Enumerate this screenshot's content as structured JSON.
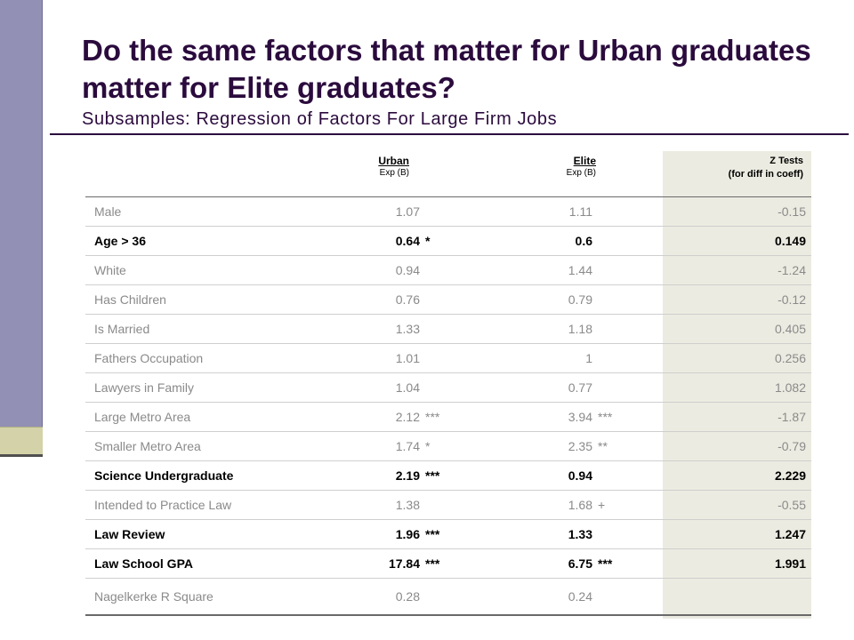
{
  "slide": {
    "title": "Do the same factors that matter for Urban graduates matter for Elite graduates?",
    "subtitle": "Subsamples: Regression of Factors For Large Firm Jobs"
  },
  "table": {
    "headers": {
      "urban": "Urban",
      "urban_sub": "Exp (B)",
      "elite": "Elite",
      "elite_sub": "Exp (B)",
      "z_line1": "Z Tests",
      "z_line2": "(for diff in coeff)"
    },
    "rows": [
      {
        "label": "Male",
        "urban": "1.07",
        "urban_sig": "",
        "elite": "1.11",
        "elite_sig": "",
        "z": "-0.15"
      },
      {
        "label": "Age > 36",
        "urban": "0.64",
        "urban_sig": "*",
        "elite": "0.6",
        "elite_sig": "",
        "z": "0.149"
      },
      {
        "label": "White",
        "urban": "0.94",
        "urban_sig": "",
        "elite": "1.44",
        "elite_sig": "",
        "z": "-1.24"
      },
      {
        "label": "Has Children",
        "urban": "0.76",
        "urban_sig": "",
        "elite": "0.79",
        "elite_sig": "",
        "z": "-0.12"
      },
      {
        "label": "Is Married",
        "urban": "1.33",
        "urban_sig": "",
        "elite": "1.18",
        "elite_sig": "",
        "z": "0.405"
      },
      {
        "label": "Fathers Occupation",
        "urban": "1.01",
        "urban_sig": "",
        "elite": "1",
        "elite_sig": "",
        "z": "0.256"
      },
      {
        "label": "Lawyers in Family",
        "urban": "1.04",
        "urban_sig": "",
        "elite": "0.77",
        "elite_sig": "",
        "z": "1.082"
      },
      {
        "label": "Large Metro Area",
        "urban": "2.12",
        "urban_sig": "***",
        "elite": "3.94",
        "elite_sig": "***",
        "z": "-1.87"
      },
      {
        "label": "Smaller Metro Area",
        "urban": "1.74",
        "urban_sig": "*",
        "elite": "2.35",
        "elite_sig": "**",
        "z": "-0.79"
      },
      {
        "label": "Science Undergraduate",
        "urban": "2.19",
        "urban_sig": "***",
        "elite": "0.94",
        "elite_sig": "",
        "z": "2.229"
      },
      {
        "label": "Intended to Practice Law",
        "urban": "1.38",
        "urban_sig": "",
        "elite": "1.68",
        "elite_sig": "+",
        "z": "-0.55"
      },
      {
        "label": "Law Review",
        "urban": "1.96",
        "urban_sig": "***",
        "elite": "1.33",
        "elite_sig": "",
        "z": "1.247"
      },
      {
        "label": "Law School GPA",
        "urban": "17.84",
        "urban_sig": "***",
        "elite": "6.75",
        "elite_sig": "***",
        "z": "1.991"
      },
      {
        "label": "Nagelkerke R Square",
        "urban": "0.28",
        "urban_sig": "",
        "elite": "0.24",
        "elite_sig": "",
        "z": ""
      }
    ]
  }
}
